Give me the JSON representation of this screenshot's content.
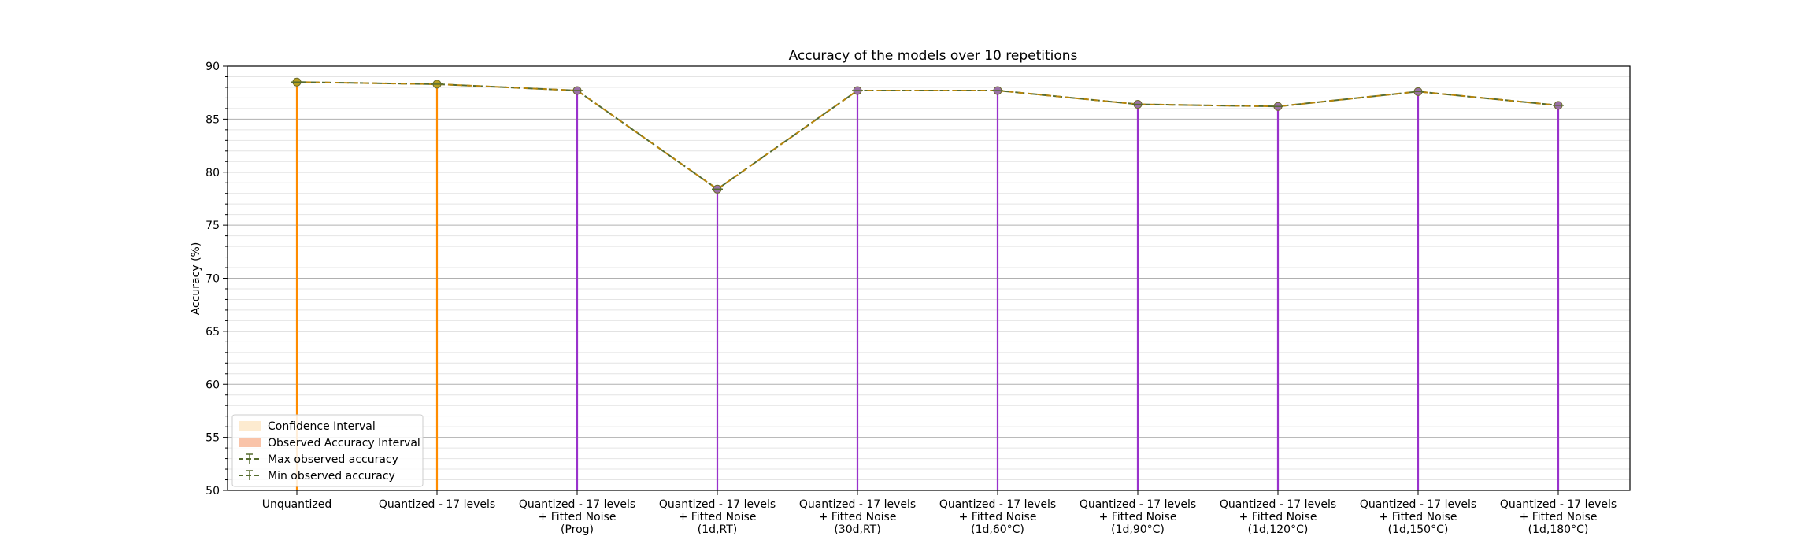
{
  "chart_data": {
    "type": "line",
    "title": "Accuracy of the models over 10 repetitions",
    "xlabel": "",
    "ylabel": "Accuracy (%)",
    "ylim": [
      50,
      90
    ],
    "yticks": [
      50,
      55,
      60,
      65,
      70,
      75,
      80,
      85,
      90
    ],
    "grid": "horizontal major and minor",
    "legend_position": "lower-left",
    "categories": [
      "Unquantized",
      "Quantized - 17 levels",
      "Quantized - 17 levels\n+ Fitted Noise\n(Prog)",
      "Quantized - 17 levels\n+ Fitted Noise\n(1d,RT)",
      "Quantized - 17 levels\n+ Fitted Noise\n(30d,RT)",
      "Quantized - 17 levels\n+ Fitted Noise\n(1d,60°C)",
      "Quantized - 17 levels\n+ Fitted Noise\n(1d,90°C)",
      "Quantized - 17 levels\n+ Fitted Noise\n(1d,120°C)",
      "Quantized - 17 levels\n+ Fitted Noise\n(1d,150°C)",
      "Quantized - 17 levels\n+ Fitted Noise\n(1d,180°C)"
    ],
    "series": [
      {
        "name": "Max observed accuracy",
        "values": [
          88.5,
          88.3,
          87.7,
          78.4,
          87.7,
          87.7,
          86.4,
          86.2,
          87.6,
          86.3
        ],
        "color": "#556b2f"
      },
      {
        "name": "Min observed accuracy",
        "values": [
          88.5,
          88.3,
          87.7,
          78.4,
          87.7,
          87.7,
          86.4,
          86.2,
          87.6,
          86.3
        ],
        "color": "#b8860b"
      }
    ],
    "stem_colors": [
      "#ff8c00",
      "#ff8c00",
      "#9932cc",
      "#9932cc",
      "#9932cc",
      "#9932cc",
      "#9932cc",
      "#9932cc",
      "#9932cc",
      "#9932cc"
    ],
    "marker_colors": [
      "#b8a020",
      "#b8a020",
      "#9a70a8",
      "#9a70a8",
      "#9a70a8",
      "#9a70a8",
      "#9a70a8",
      "#9a70a8",
      "#9a70a8",
      "#9a70a8"
    ],
    "legend": [
      {
        "label": "Confidence Interval",
        "kind": "patch",
        "color": "#fdebd0"
      },
      {
        "label": "Observed Accuracy Interval",
        "kind": "patch",
        "color": "#f9c3a8"
      },
      {
        "label": "Max observed accuracy",
        "kind": "line"
      },
      {
        "label": "Min observed accuracy",
        "kind": "line"
      }
    ]
  }
}
